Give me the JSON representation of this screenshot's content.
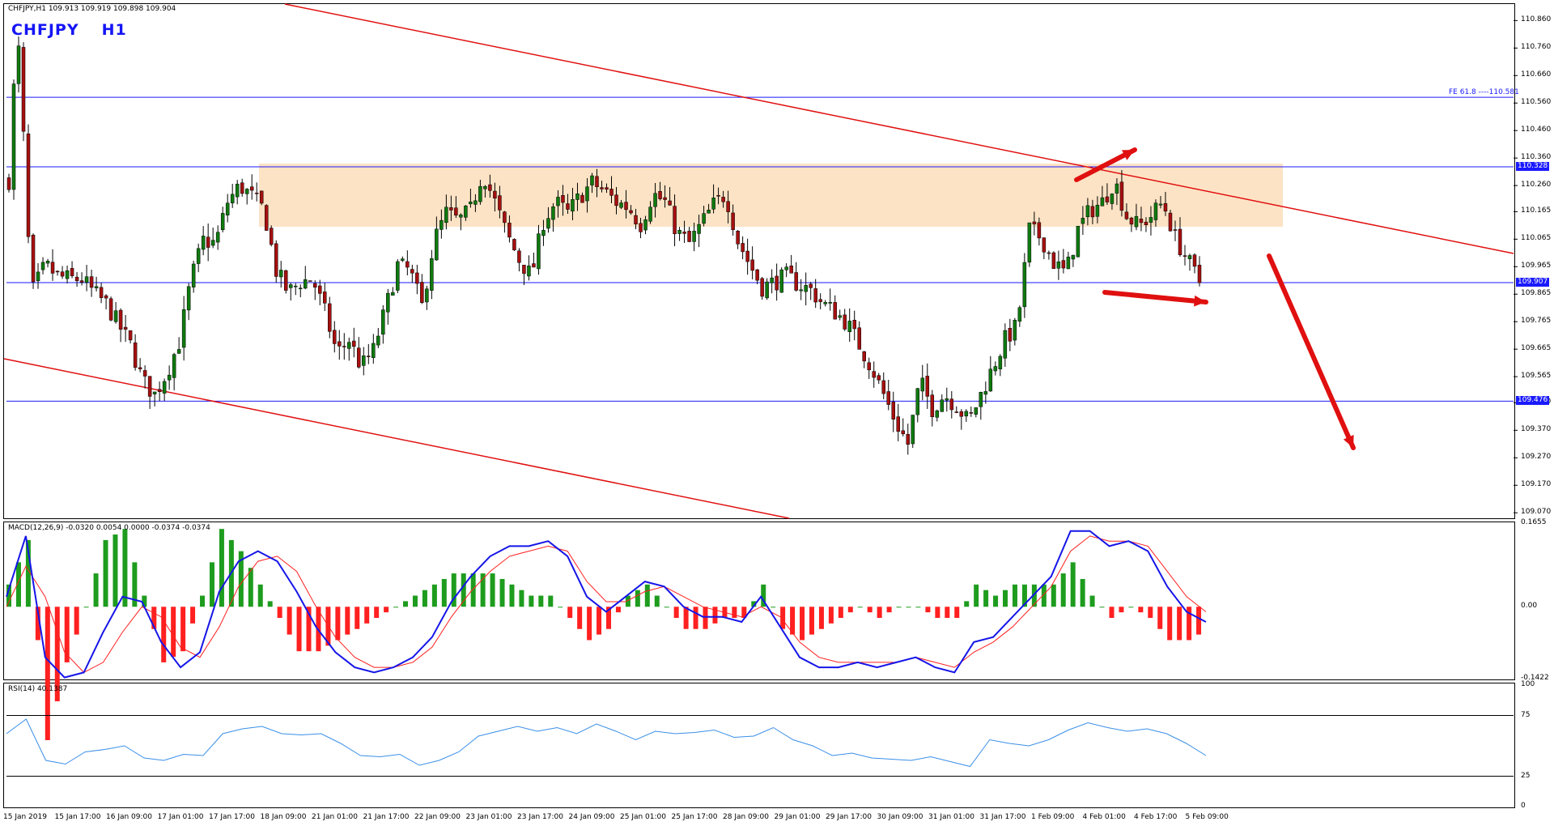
{
  "header": {
    "infobar": "CHFJPY,H1  109.913 109.919 109.898 109.904",
    "symbol": "CHFJPY",
    "timeframe": "H1"
  },
  "colors": {
    "bull": "#0f7a0f",
    "bear": "#a61010",
    "hline": "#1a1aff",
    "trend": "#e01010",
    "zone": "#fde3c5",
    "macd_line": "#1515e8",
    "signal_line": "#ff2020",
    "hist_pos": "#1e9c1e",
    "hist_neg": "#ff2020",
    "rsi_line": "#3a8fe8",
    "price_box": "#1a1aff"
  },
  "price_scale": {
    "labels": [
      "110.860",
      "110.760",
      "110.660",
      "110.560",
      "110.460",
      "110.360",
      "110.260",
      "110.165",
      "110.065",
      "109.965",
      "109.865",
      "109.765",
      "109.665",
      "109.565",
      "109.470",
      "109.370",
      "109.270",
      "109.170",
      "109.070"
    ]
  },
  "levels": {
    "fe_label": "FE 61.8 ----110.581",
    "fe_value": 110.581,
    "resistance_label": "110.328",
    "resistance": 110.328,
    "current_label": "109.907",
    "current": 109.907,
    "support_label": "109.476",
    "support": 109.476
  },
  "zone": {
    "low": 110.11,
    "high": 110.34
  },
  "macd": {
    "label": "MACD(12,26,9) -0.0320 0.0054 0.0000 -0.0374 -0.0374",
    "scale_labels": [
      "0.1655",
      "0.00",
      "-0.1422"
    ],
    "max": 0.1655,
    "min": -0.1422
  },
  "rsi": {
    "label": "RSI(14) 40.1387",
    "scale_labels": [
      "100",
      "75",
      "25",
      "0"
    ],
    "value": 40.1387
  },
  "time_axis": [
    "15 Jan 2019",
    "15 Jan 17:00",
    "16 Jan 09:00",
    "17 Jan 01:00",
    "17 Jan 17:00",
    "18 Jan 09:00",
    "21 Jan 01:00",
    "21 Jan 17:00",
    "22 Jan 09:00",
    "23 Jan 01:00",
    "23 Jan 17:00",
    "24 Jan 09:00",
    "25 Jan 01:00",
    "25 Jan 17:00",
    "28 Jan 09:00",
    "29 Jan 01:00",
    "29 Jan 17:00",
    "30 Jan 09:00",
    "31 Jan 01:00",
    "31 Jan 17:00",
    "1 Feb 09:00",
    "4 Feb 01:00",
    "4 Feb 17:00",
    "5 Feb 09:00"
  ],
  "chart_data": {
    "type": "candlestick",
    "symbol": "CHFJPY",
    "timeframe": "H1",
    "ylim": [
      109.05,
      110.92
    ],
    "close_path": [
      [
        0,
        110.28
      ],
      [
        6,
        110.78
      ],
      [
        10,
        110.72
      ],
      [
        14,
        110.15
      ],
      [
        20,
        109.88
      ],
      [
        30,
        109.97
      ],
      [
        40,
        109.93
      ],
      [
        50,
        109.92
      ],
      [
        60,
        109.92
      ],
      [
        70,
        109.87
      ],
      [
        80,
        109.83
      ],
      [
        100,
        109.68
      ],
      [
        110,
        109.55
      ],
      [
        120,
        109.5
      ],
      [
        130,
        109.58
      ],
      [
        140,
        109.69
      ],
      [
        150,
        109.92
      ],
      [
        160,
        110.06
      ],
      [
        170,
        110.05
      ],
      [
        180,
        110.2
      ],
      [
        190,
        110.26
      ],
      [
        200,
        110.22
      ],
      [
        210,
        110.17
      ],
      [
        220,
        109.95
      ],
      [
        230,
        109.87
      ],
      [
        240,
        109.91
      ],
      [
        250,
        109.92
      ],
      [
        260,
        109.8
      ],
      [
        270,
        109.65
      ],
      [
        280,
        109.7
      ],
      [
        290,
        109.6
      ],
      [
        300,
        109.66
      ],
      [
        310,
        109.81
      ],
      [
        320,
        109.97
      ],
      [
        330,
        109.95
      ],
      [
        340,
        109.82
      ],
      [
        350,
        110.06
      ],
      [
        360,
        110.16
      ],
      [
        370,
        110.13
      ],
      [
        380,
        110.17
      ],
      [
        390,
        110.31
      ],
      [
        400,
        110.2
      ],
      [
        410,
        110.08
      ],
      [
        420,
        109.99
      ],
      [
        430,
        109.93
      ],
      [
        440,
        110.13
      ],
      [
        450,
        110.2
      ],
      [
        460,
        110.16
      ],
      [
        470,
        110.22
      ],
      [
        480,
        110.27
      ],
      [
        490,
        110.24
      ],
      [
        500,
        110.2
      ],
      [
        510,
        110.18
      ],
      [
        520,
        110.12
      ],
      [
        530,
        110.23
      ],
      [
        540,
        110.2
      ],
      [
        550,
        110.09
      ],
      [
        560,
        110.05
      ],
      [
        570,
        110.12
      ],
      [
        580,
        110.19
      ],
      [
        590,
        110.23
      ],
      [
        600,
        110.06
      ],
      [
        610,
        109.97
      ],
      [
        620,
        109.89
      ],
      [
        630,
        109.91
      ],
      [
        640,
        109.93
      ],
      [
        650,
        109.9
      ],
      [
        660,
        109.88
      ],
      [
        670,
        109.83
      ],
      [
        680,
        109.8
      ],
      [
        690,
        109.76
      ],
      [
        700,
        109.68
      ],
      [
        710,
        109.6
      ],
      [
        720,
        109.5
      ],
      [
        730,
        109.4
      ],
      [
        740,
        109.32
      ],
      [
        750,
        109.55
      ],
      [
        760,
        109.45
      ],
      [
        770,
        109.5
      ],
      [
        780,
        109.46
      ],
      [
        790,
        109.4
      ],
      [
        800,
        109.5
      ],
      [
        810,
        109.6
      ],
      [
        820,
        109.7
      ],
      [
        830,
        109.75
      ],
      [
        840,
        110.1
      ],
      [
        850,
        110.07
      ],
      [
        860,
        109.98
      ],
      [
        870,
        109.94
      ],
      [
        880,
        110.1
      ],
      [
        890,
        110.17
      ],
      [
        900,
        110.2
      ],
      [
        910,
        110.28
      ],
      [
        920,
        110.15
      ],
      [
        930,
        110.11
      ],
      [
        940,
        110.15
      ],
      [
        950,
        110.2
      ],
      [
        960,
        110.07
      ],
      [
        970,
        109.99
      ],
      [
        980,
        109.91
      ]
    ],
    "macd_path": [
      [
        0,
        0.02
      ],
      [
        20,
        0.14
      ],
      [
        40,
        -0.1
      ],
      [
        60,
        -0.14
      ],
      [
        80,
        -0.13
      ],
      [
        100,
        -0.05
      ],
      [
        120,
        0.02
      ],
      [
        140,
        0.01
      ],
      [
        160,
        -0.07
      ],
      [
        180,
        -0.12
      ],
      [
        200,
        -0.09
      ],
      [
        220,
        0.03
      ],
      [
        240,
        0.09
      ],
      [
        260,
        0.11
      ],
      [
        280,
        0.09
      ],
      [
        300,
        0.03
      ],
      [
        320,
        -0.04
      ],
      [
        340,
        -0.09
      ],
      [
        360,
        -0.12
      ],
      [
        380,
        -0.13
      ],
      [
        400,
        -0.12
      ],
      [
        420,
        -0.1
      ],
      [
        440,
        -0.06
      ],
      [
        460,
        0.01
      ],
      [
        480,
        0.06
      ],
      [
        500,
        0.1
      ],
      [
        520,
        0.12
      ],
      [
        540,
        0.12
      ],
      [
        560,
        0.13
      ],
      [
        580,
        0.1
      ],
      [
        600,
        0.02
      ],
      [
        620,
        -0.01
      ],
      [
        640,
        0.02
      ],
      [
        660,
        0.05
      ],
      [
        680,
        0.04
      ],
      [
        700,
        0.0
      ],
      [
        720,
        -0.02
      ],
      [
        740,
        -0.02
      ],
      [
        760,
        -0.03
      ],
      [
        780,
        0.02
      ],
      [
        800,
        -0.04
      ],
      [
        820,
        -0.1
      ],
      [
        840,
        -0.12
      ],
      [
        860,
        -0.12
      ],
      [
        880,
        -0.11
      ],
      [
        900,
        -0.12
      ],
      [
        920,
        -0.11
      ],
      [
        940,
        -0.1
      ],
      [
        960,
        -0.12
      ],
      [
        980,
        -0.13
      ],
      [
        1000,
        -0.07
      ],
      [
        1020,
        -0.06
      ],
      [
        1040,
        -0.02
      ],
      [
        1060,
        0.02
      ],
      [
        1080,
        0.06
      ],
      [
        1100,
        0.15
      ],
      [
        1120,
        0.15
      ],
      [
        1140,
        0.12
      ],
      [
        1160,
        0.13
      ],
      [
        1180,
        0.11
      ],
      [
        1200,
        0.04
      ],
      [
        1220,
        -0.01
      ],
      [
        1240,
        -0.03
      ]
    ],
    "signal_path": [
      [
        0,
        0.0
      ],
      [
        20,
        0.08
      ],
      [
        40,
        0.02
      ],
      [
        60,
        -0.09
      ],
      [
        80,
        -0.13
      ],
      [
        100,
        -0.11
      ],
      [
        120,
        -0.05
      ],
      [
        140,
        0.0
      ],
      [
        160,
        -0.02
      ],
      [
        180,
        -0.08
      ],
      [
        200,
        -0.1
      ],
      [
        220,
        -0.04
      ],
      [
        240,
        0.04
      ],
      [
        260,
        0.09
      ],
      [
        280,
        0.1
      ],
      [
        300,
        0.07
      ],
      [
        320,
        0.0
      ],
      [
        340,
        -0.06
      ],
      [
        360,
        -0.1
      ],
      [
        380,
        -0.12
      ],
      [
        400,
        -0.12
      ],
      [
        420,
        -0.11
      ],
      [
        440,
        -0.08
      ],
      [
        460,
        -0.02
      ],
      [
        480,
        0.03
      ],
      [
        500,
        0.07
      ],
      [
        520,
        0.1
      ],
      [
        540,
        0.11
      ],
      [
        560,
        0.12
      ],
      [
        580,
        0.11
      ],
      [
        600,
        0.05
      ],
      [
        620,
        0.01
      ],
      [
        640,
        0.01
      ],
      [
        660,
        0.03
      ],
      [
        680,
        0.04
      ],
      [
        700,
        0.02
      ],
      [
        720,
        0.0
      ],
      [
        740,
        -0.01
      ],
      [
        760,
        -0.02
      ],
      [
        780,
        0.0
      ],
      [
        800,
        -0.02
      ],
      [
        820,
        -0.07
      ],
      [
        840,
        -0.1
      ],
      [
        860,
        -0.11
      ],
      [
        880,
        -0.11
      ],
      [
        900,
        -0.11
      ],
      [
        920,
        -0.11
      ],
      [
        940,
        -0.1
      ],
      [
        960,
        -0.11
      ],
      [
        980,
        -0.12
      ],
      [
        1000,
        -0.09
      ],
      [
        1020,
        -0.07
      ],
      [
        1040,
        -0.04
      ],
      [
        1060,
        0.0
      ],
      [
        1080,
        0.04
      ],
      [
        1100,
        0.11
      ],
      [
        1120,
        0.14
      ],
      [
        1140,
        0.13
      ],
      [
        1160,
        0.13
      ],
      [
        1180,
        0.12
      ],
      [
        1200,
        0.07
      ],
      [
        1220,
        0.02
      ],
      [
        1240,
        -0.01
      ]
    ],
    "rsi_path": [
      [
        0,
        60
      ],
      [
        20,
        72
      ],
      [
        40,
        38
      ],
      [
        60,
        35
      ],
      [
        80,
        45
      ],
      [
        100,
        47
      ],
      [
        120,
        50
      ],
      [
        140,
        40
      ],
      [
        160,
        38
      ],
      [
        180,
        43
      ],
      [
        200,
        42
      ],
      [
        220,
        60
      ],
      [
        240,
        64
      ],
      [
        260,
        66
      ],
      [
        280,
        60
      ],
      [
        300,
        59
      ],
      [
        320,
        60
      ],
      [
        340,
        52
      ],
      [
        360,
        42
      ],
      [
        380,
        41
      ],
      [
        400,
        43
      ],
      [
        420,
        34
      ],
      [
        440,
        38
      ],
      [
        460,
        45
      ],
      [
        480,
        58
      ],
      [
        500,
        62
      ],
      [
        520,
        66
      ],
      [
        540,
        62
      ],
      [
        560,
        65
      ],
      [
        580,
        60
      ],
      [
        600,
        68
      ],
      [
        620,
        62
      ],
      [
        640,
        55
      ],
      [
        660,
        62
      ],
      [
        680,
        60
      ],
      [
        700,
        61
      ],
      [
        720,
        63
      ],
      [
        740,
        57
      ],
      [
        760,
        58
      ],
      [
        780,
        65
      ],
      [
        800,
        55
      ],
      [
        820,
        50
      ],
      [
        840,
        42
      ],
      [
        860,
        44
      ],
      [
        880,
        40
      ],
      [
        900,
        39
      ],
      [
        920,
        38
      ],
      [
        940,
        41
      ],
      [
        960,
        37
      ],
      [
        980,
        33
      ],
      [
        1000,
        55
      ],
      [
        1020,
        52
      ],
      [
        1040,
        50
      ],
      [
        1060,
        55
      ],
      [
        1080,
        63
      ],
      [
        1100,
        69
      ],
      [
        1120,
        65
      ],
      [
        1140,
        62
      ],
      [
        1160,
        64
      ],
      [
        1180,
        60
      ],
      [
        1200,
        52
      ],
      [
        1220,
        42
      ]
    ],
    "annotations": [
      "price_zone 110.11-110.34",
      "descending channel upper and lower trendlines",
      "arrows: up, right-down, large down"
    ]
  }
}
